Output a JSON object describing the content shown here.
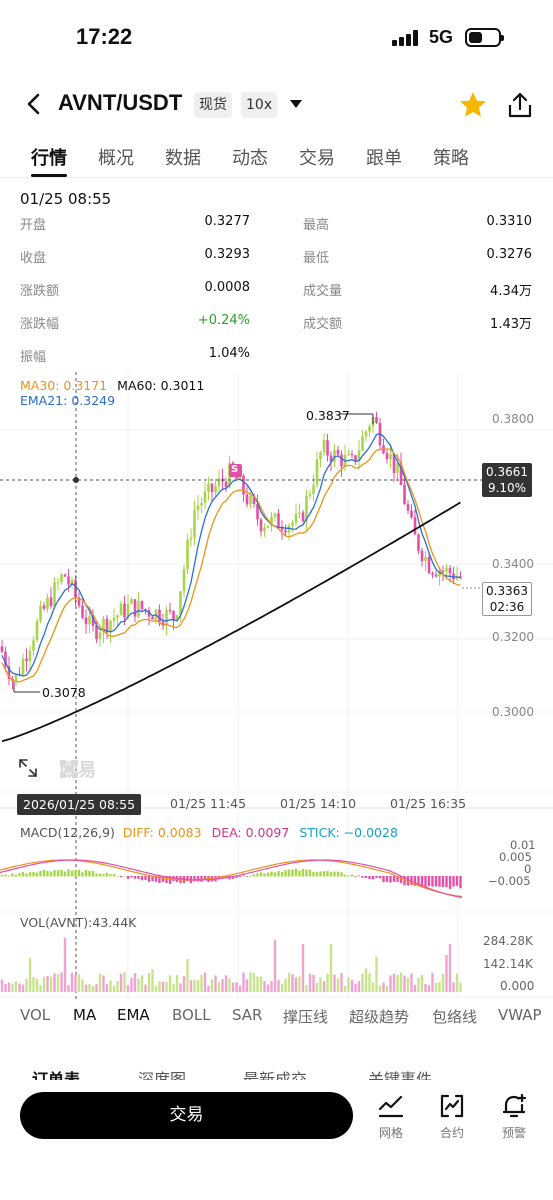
{
  "status": {
    "time": "17:22",
    "network": "5G"
  },
  "header": {
    "pair": "AVNT/USDT",
    "market_tag": "现货",
    "leverage_tag": "10x"
  },
  "tabs": [
    "行情",
    "概况",
    "数据",
    "动态",
    "交易",
    "跟单",
    "策略"
  ],
  "stats": {
    "time": "01/25 08:55",
    "left": [
      {
        "label": "开盘",
        "value": "0.3277"
      },
      {
        "label": "收盘",
        "value": "0.3293"
      },
      {
        "label": "涨跌额",
        "value": "0.0008"
      },
      {
        "label": "涨跌幅",
        "value": "+0.24%"
      },
      {
        "label": "振幅",
        "value": "1.04%"
      }
    ],
    "right": [
      {
        "label": "最高",
        "value": "0.3310"
      },
      {
        "label": "最低",
        "value": "0.3276"
      },
      {
        "label": "成交量",
        "value": "4.34万"
      },
      {
        "label": "成交额",
        "value": "1.43万"
      }
    ]
  },
  "legend": {
    "ma30": "MA30: 0.3171",
    "ma60": "MA60: 0.3011",
    "ema21": "EMA21: 0.3249"
  },
  "price_axis": [
    "0.3800",
    "0.3400",
    "0.3200",
    "0.3000"
  ],
  "crosshair_price": "0.3661",
  "crosshair_pct": "9.10%",
  "last_price": "0.3363",
  "countdown": "02:36",
  "high_label": "0.3837",
  "low_label": "0.3078",
  "signal_marker": "S",
  "watermark": "欧易",
  "time_badge": "2026/01/25 08:55",
  "time_axis": [
    "01/25 11:45",
    "01/25 14:10",
    "01/25 16:35"
  ],
  "macd": {
    "title": "MACD(12,26,9)",
    "diff": "DIFF: 0.0083",
    "dea": "DEA: 0.0097",
    "stick": "STICK: −0.0028",
    "axis": [
      "0.01",
      "0.005",
      "0",
      "−0.005"
    ]
  },
  "vol": {
    "title": "VOL(AVNT):43.44K",
    "axis": [
      "284.28K",
      "142.14K",
      "0.000"
    ]
  },
  "indicators": [
    "VOL",
    "MA",
    "EMA",
    "BOLL",
    "SAR",
    "撑压线",
    "超级趋势",
    "包络线",
    "VWAP"
  ],
  "sub_tabs": [
    "订单表",
    "深度图",
    "最新成交",
    "关键事件"
  ],
  "bottom": {
    "trade": "交易",
    "grid": "网格",
    "contract": "合约",
    "alert": "预警"
  },
  "colors": {
    "up": "#a8d64a",
    "down": "#e64fa6",
    "ma30": "#e8951b",
    "ema21": "#2b6fd6",
    "ma60": "#111111"
  }
}
